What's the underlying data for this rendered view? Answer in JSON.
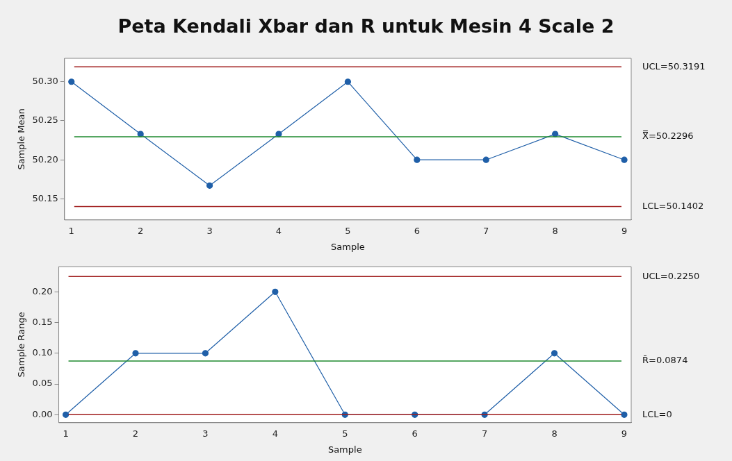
{
  "chart_data": [
    {
      "type": "line",
      "title": "Peta Kendali Xbar dan R untuk Mesin 4 Scale 2",
      "xlabel": "Sample",
      "ylabel": "Sample Mean",
      "x": [
        1,
        2,
        3,
        4,
        5,
        6,
        7,
        8,
        9
      ],
      "series": [
        {
          "color": "#1f5fa8",
          "values": [
            50.3,
            50.233,
            50.167,
            50.233,
            50.3,
            50.2,
            50.2,
            50.233,
            50.2
          ]
        }
      ],
      "xlim": [
        0.9,
        9.1
      ],
      "xticks": [
        1,
        2,
        3,
        4,
        5,
        6,
        7,
        8,
        9
      ],
      "ylim": [
        50.123,
        50.33
      ],
      "yticks": [
        {
          "value": 50.15,
          "label": "50.15"
        },
        {
          "value": 50.2,
          "label": "50.20"
        },
        {
          "value": 50.25,
          "label": "50.25"
        },
        {
          "value": 50.3,
          "label": "50.30"
        }
      ],
      "ref_lines": [
        {
          "axis": "y",
          "value": 50.3191,
          "label": "UCL=50.3191",
          "color": "#a01c1c"
        },
        {
          "axis": "y",
          "value": 50.2296,
          "label": "X̿=50.2296",
          "color": "#1e8a2e"
        },
        {
          "axis": "y",
          "value": 50.1402,
          "label": "LCL=50.1402",
          "color": "#a01c1c"
        }
      ],
      "marker": "circle",
      "grid": false
    },
    {
      "type": "line",
      "xlabel": "Sample",
      "ylabel": "Sample Range",
      "x": [
        1,
        2,
        3,
        4,
        5,
        6,
        7,
        8,
        9
      ],
      "series": [
        {
          "color": "#1f5fa8",
          "values": [
            0,
            0.1,
            0.1,
            0.2,
            0,
            0,
            0,
            0.1,
            0
          ]
        }
      ],
      "xlim": [
        0.9,
        9.1
      ],
      "xticks": [
        1,
        2,
        3,
        4,
        5,
        6,
        7,
        8,
        9
      ],
      "ylim": [
        -0.013,
        0.241
      ],
      "yticks": [
        {
          "value": 0,
          "label": "0.00"
        },
        {
          "value": 0.05,
          "label": "0.05"
        },
        {
          "value": 0.1,
          "label": "0.10"
        },
        {
          "value": 0.15,
          "label": "0.15"
        },
        {
          "value": 0.2,
          "label": "0.20"
        }
      ],
      "ref_lines": [
        {
          "axis": "y",
          "value": 0.225,
          "label": "UCL=0.2250",
          "color": "#a01c1c"
        },
        {
          "axis": "y",
          "value": 0.0874,
          "label": "R̄=0.0874",
          "color": "#1e8a2e"
        },
        {
          "axis": "y",
          "value": 0,
          "label": "LCL=0",
          "color": "#a01c1c"
        }
      ],
      "marker": "circle",
      "grid": false
    }
  ]
}
